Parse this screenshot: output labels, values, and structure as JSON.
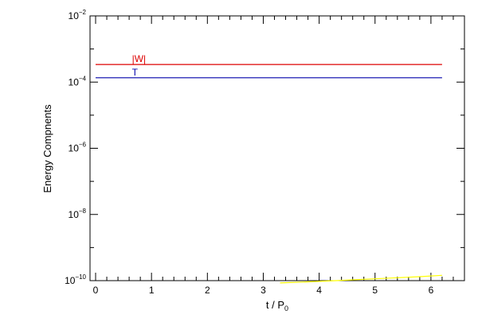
{
  "chart_data": {
    "type": "line",
    "xlabel": "t / P",
    "xlabel_subscript": "0",
    "ylabel": "Energy Compnents",
    "y_scale": "log",
    "xlim": [
      -0.1,
      6.6
    ],
    "ylim": [
      1e-10,
      0.01
    ],
    "x_ticks": [
      0,
      1,
      2,
      3,
      4,
      5,
      6
    ],
    "y_ticks": [
      {
        "value": 1e-10,
        "base": "10",
        "exp": "−10"
      },
      {
        "value": 1e-08,
        "base": "10",
        "exp": "−8"
      },
      {
        "value": 1e-06,
        "base": "10",
        "exp": "−6"
      },
      {
        "value": 0.0001,
        "base": "10",
        "exp": "−4"
      },
      {
        "value": 0.01,
        "base": "10",
        "exp": "−2"
      }
    ],
    "grid": false,
    "series": [
      {
        "name": "|W|",
        "color": "#dd0000",
        "x": [
          0,
          6.2
        ],
        "y": [
          0.00034,
          0.00034
        ]
      },
      {
        "name": "T",
        "color": "#0000aa",
        "x": [
          0,
          6.2
        ],
        "y": [
          0.000135,
          0.000135
        ]
      },
      {
        "color": "#ffff00",
        "x": [
          3.3,
          3.8,
          4.3,
          4.8,
          5.3,
          5.8,
          6.2
        ],
        "y": [
          8.5e-11,
          9.2e-11,
          1e-10,
          1.1e-10,
          1.2e-10,
          1.32e-10,
          1.45e-10
        ]
      }
    ]
  }
}
